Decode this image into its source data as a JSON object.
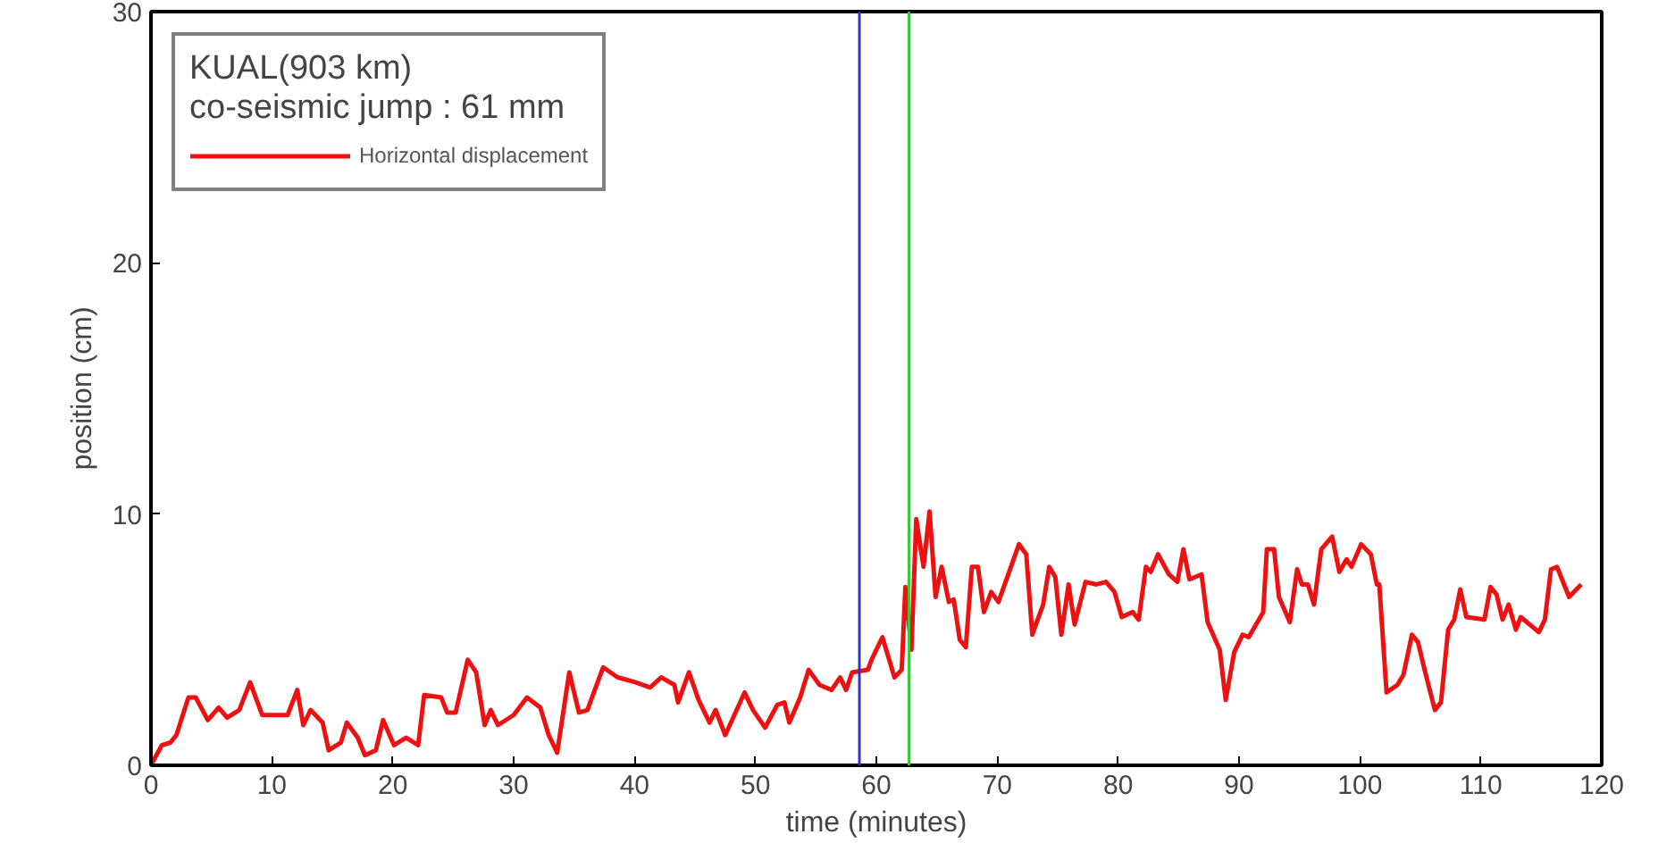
{
  "chart_data": {
    "type": "line",
    "title": "KUAL(903 km)",
    "subtitle": "co-seismic jump : 61 mm",
    "xlabel": "time (minutes)",
    "ylabel": "position (cm)",
    "xlim": [
      0,
      120
    ],
    "ylim": [
      0,
      30
    ],
    "xticks": [
      0,
      10,
      20,
      30,
      40,
      50,
      60,
      70,
      80,
      90,
      100,
      110,
      120
    ],
    "yticks": [
      0,
      10,
      20,
      30
    ],
    "grid": false,
    "legend": "top left",
    "marker": "none",
    "line_style": "solid",
    "ref_lines": [
      {
        "axis": "x",
        "value": 58.6,
        "color": "#3333cc"
      },
      {
        "axis": "x",
        "value": 62.7,
        "color": "#33cc33"
      }
    ],
    "series": [
      {
        "name": "Horizontal displacement",
        "color": "#ee1111",
        "x": [
          0,
          0.9,
          1.6,
          2.1,
          3.1,
          3.7,
          4.7,
          5.6,
          6.3,
          7.3,
          8.2,
          9.2,
          11.3,
          12.1,
          12.6,
          13.2,
          14.2,
          14.7,
          15.7,
          16.2,
          17.1,
          17.7,
          18.6,
          19.2,
          20.1,
          21.1,
          22.1,
          22.6,
          24.0,
          24.5,
          25.2,
          26.2,
          26.9,
          27.6,
          28.1,
          28.7,
          30.0,
          31.1,
          32.2,
          32.9,
          33.6,
          34.6,
          35.4,
          36.1,
          37.4,
          38.6,
          40.1,
          41.3,
          42.2,
          43.3,
          43.6,
          44.5,
          45.3,
          46.2,
          46.7,
          47.5,
          49.1,
          49.8,
          50.8,
          51.8,
          52.4,
          52.8,
          53.7,
          54.4,
          55.3,
          56.3,
          57.0,
          57.5,
          58.0,
          59.3,
          59.6,
          60.5,
          61.5,
          62.1,
          62.4,
          62.9,
          63.3,
          63.9,
          64.4,
          64.9,
          65.4,
          66.0,
          66.4,
          66.9,
          67.4,
          67.9,
          68.4,
          68.9,
          69.5,
          70.1,
          71.8,
          72.4,
          72.9,
          73.8,
          74.3,
          74.8,
          75.3,
          75.9,
          76.4,
          77.3,
          78.2,
          79.0,
          79.7,
          80.3,
          81.2,
          81.7,
          82.3,
          82.7,
          83.3,
          84.2,
          84.9,
          85.4,
          85.9,
          86.9,
          87.4,
          88.4,
          88.9,
          89.6,
          90.3,
          90.8,
          92.0,
          92.3,
          92.9,
          93.3,
          94.2,
          94.8,
          95.2,
          95.7,
          96.2,
          96.8,
          97.7,
          98.3,
          98.9,
          99.3,
          100.1,
          100.9,
          101.4,
          101.6,
          102.2,
          103.1,
          103.6,
          104.3,
          104.8,
          105.4,
          106.2,
          106.7,
          107.3,
          107.8,
          108.3,
          108.8,
          110.3,
          110.8,
          111.3,
          111.8,
          112.3,
          112.9,
          113.3,
          114.8,
          115.3,
          115.8,
          116.3,
          117.3,
          118.3
        ],
        "values": [
          0,
          0.8,
          0.9,
          1.2,
          2.7,
          2.7,
          1.8,
          2.3,
          1.9,
          2.2,
          3.3,
          2.0,
          2.0,
          3.0,
          1.6,
          2.2,
          1.7,
          0.6,
          0.9,
          1.7,
          1.1,
          0.4,
          0.6,
          1.8,
          0.8,
          1.1,
          0.8,
          2.8,
          2.7,
          2.1,
          2.1,
          4.2,
          3.7,
          1.6,
          2.2,
          1.6,
          2.0,
          2.7,
          2.3,
          1.2,
          0.5,
          3.7,
          2.1,
          2.2,
          3.9,
          3.5,
          3.3,
          3.1,
          3.5,
          3.2,
          2.5,
          3.7,
          2.6,
          1.7,
          2.2,
          1.2,
          2.9,
          2.2,
          1.5,
          2.4,
          2.5,
          1.7,
          2.7,
          3.8,
          3.2,
          3.0,
          3.5,
          3.0,
          3.7,
          3.8,
          4.2,
          5.1,
          3.5,
          3.8,
          7.1,
          4.6,
          9.8,
          7.9,
          10.1,
          6.7,
          7.9,
          6.5,
          6.6,
          5.0,
          4.7,
          7.9,
          7.9,
          6.1,
          6.9,
          6.5,
          8.8,
          8.4,
          5.2,
          6.4,
          7.9,
          7.5,
          5.2,
          7.2,
          5.6,
          7.3,
          7.2,
          7.3,
          6.9,
          5.9,
          6.1,
          5.8,
          7.9,
          7.7,
          8.4,
          7.6,
          7.3,
          8.6,
          7.4,
          7.6,
          5.7,
          4.6,
          2.6,
          4.5,
          5.2,
          5.1,
          6.1,
          8.6,
          8.6,
          6.7,
          5.7,
          7.8,
          7.2,
          7.2,
          6.4,
          8.6,
          9.1,
          7.7,
          8.2,
          7.9,
          8.8,
          8.4,
          7.2,
          7.2,
          2.9,
          3.2,
          3.6,
          5.2,
          4.9,
          3.7,
          2.2,
          2.5,
          5.4,
          5.8,
          7.0,
          5.9,
          5.8,
          7.1,
          6.8,
          5.8,
          6.4,
          5.4,
          5.9,
          5.3,
          5.8,
          7.8,
          7.9,
          6.7,
          7.2
        ]
      }
    ]
  }
}
